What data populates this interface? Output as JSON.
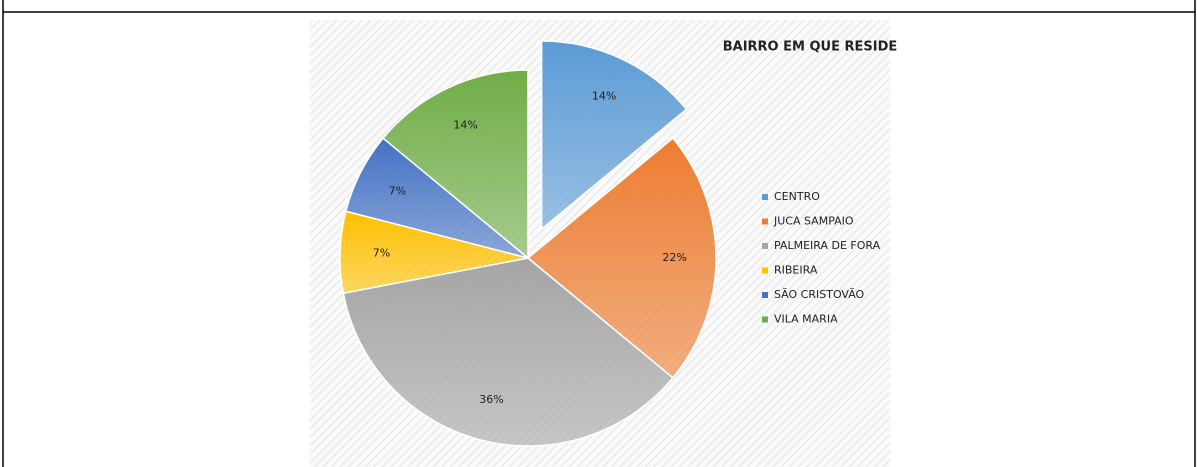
{
  "chart_data": {
    "type": "pie",
    "title": "BAIRRO EM QUE RESIDE",
    "categories": [
      "CENTRO",
      "JUCA SAMPAIO",
      "PALMEIRA DE FORA",
      "RIBEIRA",
      "SÃO CRISTOVÃO",
      "VILA MARIA"
    ],
    "values": [
      14,
      22,
      36,
      7,
      7,
      14
    ],
    "value_labels": [
      "14%",
      "22%",
      "36%",
      "7%",
      "7%",
      "14%"
    ],
    "colors": [
      "#5b9bd5",
      "#ed7d31",
      "#a5a5a5",
      "#ffc000",
      "#4472c4",
      "#70ad47"
    ],
    "legend": "right"
  }
}
